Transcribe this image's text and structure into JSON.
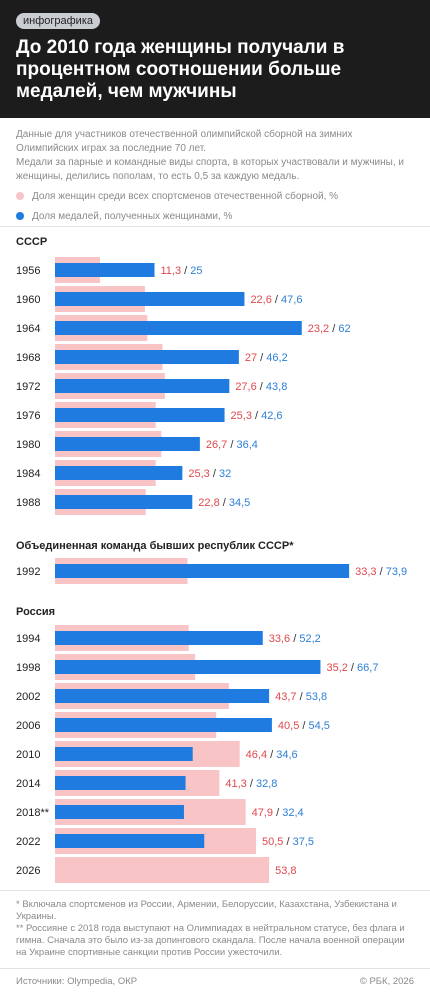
{
  "header": {
    "tag": "инфографика",
    "title": "До 2010 года женщины получали в процентном соотношении больше медалей, чем мужчины"
  },
  "subtitle": {
    "line1": "Данные для участников отечественной олимпийской сборной на зимних Олимпийских играх за последние 70 лет.",
    "line2": "Медали за парные и командные виды спорта, в которых участвовали и мужчины, и женщины, делились пополам, то есть 0,5 за каждую медаль."
  },
  "legend": {
    "women_share": "Доля женщин среди всех спортсменов отечественной сборной, %",
    "medals_share": "Доля медалей, полученных женщинами, %"
  },
  "colors": {
    "women_share": "#f8c4c6",
    "medals_share": "#1f7be0",
    "women_value_text": "#e0484d",
    "medals_value_text": "#2d7fd6",
    "header_bg": "#1c1c1c"
  },
  "chart_data": {
    "type": "bar",
    "orientation": "horizontal",
    "xlim": [
      0,
      75
    ],
    "series": [
      {
        "name": "Доля женщин среди всех спортсменов отечественной сборной, %"
      },
      {
        "name": "Доля медалей, полученных женщинами, %"
      }
    ],
    "groups": [
      {
        "label": "СССР",
        "rows": [
          {
            "year": "1956",
            "women_share": 11.3,
            "medals_share": 25,
            "women_label": "11,3",
            "medals_label": "25"
          },
          {
            "year": "1960",
            "women_share": 22.6,
            "medals_share": 47.6,
            "women_label": "22,6",
            "medals_label": "47,6"
          },
          {
            "year": "1964",
            "women_share": 23.2,
            "medals_share": 62,
            "women_label": "23,2",
            "medals_label": "62"
          },
          {
            "year": "1968",
            "women_share": 27,
            "medals_share": 46.2,
            "women_label": "27",
            "medals_label": "46,2"
          },
          {
            "year": "1972",
            "women_share": 27.6,
            "medals_share": 43.8,
            "women_label": "27,6",
            "medals_label": "43,8"
          },
          {
            "year": "1976",
            "women_share": 25.3,
            "medals_share": 42.6,
            "women_label": "25,3",
            "medals_label": "42,6"
          },
          {
            "year": "1980",
            "women_share": 26.7,
            "medals_share": 36.4,
            "women_label": "26,7",
            "medals_label": "36,4"
          },
          {
            "year": "1984",
            "women_share": 25.3,
            "medals_share": 32,
            "women_label": "25,3",
            "medals_label": "32"
          },
          {
            "year": "1988",
            "women_share": 22.8,
            "medals_share": 34.5,
            "women_label": "22,8",
            "medals_label": "34,5"
          }
        ]
      },
      {
        "label": "Объединенная команда бывших республик СССР*",
        "rows": [
          {
            "year": "1992",
            "women_share": 33.3,
            "medals_share": 73.9,
            "women_label": "33,3",
            "medals_label": "73,9"
          }
        ]
      },
      {
        "label": "Россия",
        "rows": [
          {
            "year": "1994",
            "women_share": 33.6,
            "medals_share": 52.2,
            "women_label": "33,6",
            "medals_label": "52,2"
          },
          {
            "year": "1998",
            "women_share": 35.2,
            "medals_share": 66.7,
            "women_label": "35,2",
            "medals_label": "66,7"
          },
          {
            "year": "2002",
            "women_share": 43.7,
            "medals_share": 53.8,
            "women_label": "43,7",
            "medals_label": "53,8"
          },
          {
            "year": "2006",
            "women_share": 40.5,
            "medals_share": 54.5,
            "women_label": "40,5",
            "medals_label": "54,5"
          },
          {
            "year": "2010",
            "women_share": 46.4,
            "medals_share": 34.6,
            "women_label": "46,4",
            "medals_label": "34,6"
          },
          {
            "year": "2014",
            "women_share": 41.3,
            "medals_share": 32.8,
            "women_label": "41,3",
            "medals_label": "32,8"
          },
          {
            "year": "2018**",
            "women_share": 47.9,
            "medals_share": 32.4,
            "women_label": "47,9",
            "medals_label": "32,4"
          },
          {
            "year": "2022",
            "women_share": 50.5,
            "medals_share": 37.5,
            "women_label": "50,5",
            "medals_label": "37,5"
          },
          {
            "year": "2026",
            "women_share": 53.8,
            "medals_share": null,
            "women_label": "53,8",
            "medals_label": null
          }
        ]
      }
    ]
  },
  "footnotes": {
    "note1": "* Включала спортсменов из России, Армении, Белоруссии, Казахстана, Узбекистана и Украины.",
    "note2": "** Россияне с 2018 года выступают на Олимпиадах в нейтральном статусе, без флага и гимна. Сначала это было из-за допингового скандала. После начала военной операции на Украине спортивные санкции против России ужесточили."
  },
  "footer": {
    "sources": "Источники: Olympedia, ОКР",
    "copyright": "© РБК, 2026"
  }
}
